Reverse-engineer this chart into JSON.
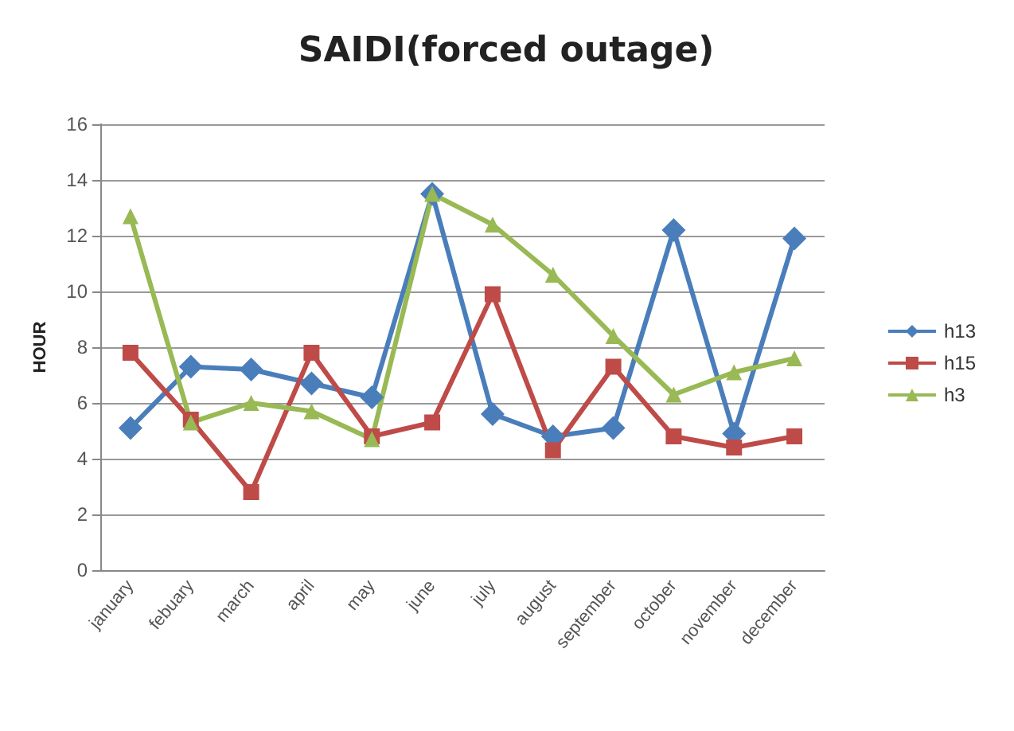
{
  "chart_data": {
    "type": "line",
    "title": "SAIDI(forced outage)",
    "ylabel": "HOUR",
    "categories": [
      "january",
      "febuary",
      "march",
      "april",
      "may",
      "june",
      "july",
      "august",
      "september",
      "october",
      "november",
      "december"
    ],
    "series": [
      {
        "name": "h13",
        "color": "#4a7ebb",
        "marker": "diamond",
        "values": [
          5.1,
          7.3,
          7.2,
          6.7,
          6.2,
          13.5,
          5.6,
          4.8,
          5.1,
          12.2,
          4.9,
          11.9
        ]
      },
      {
        "name": "h15",
        "color": "#be4b48",
        "marker": "square",
        "values": [
          7.8,
          5.4,
          2.8,
          7.8,
          4.8,
          5.3,
          9.9,
          4.3,
          7.3,
          4.8,
          4.4,
          4.8
        ]
      },
      {
        "name": "h3",
        "color": "#98b954",
        "marker": "triangle",
        "values": [
          12.7,
          5.3,
          6.0,
          5.7,
          4.7,
          13.5,
          12.4,
          10.6,
          8.4,
          6.3,
          7.1,
          7.6
        ]
      }
    ],
    "ylim": [
      0,
      16
    ],
    "yticks": [
      0,
      2,
      4,
      6,
      8,
      10,
      12,
      14,
      16
    ],
    "grid": "y",
    "legend": "right"
  }
}
